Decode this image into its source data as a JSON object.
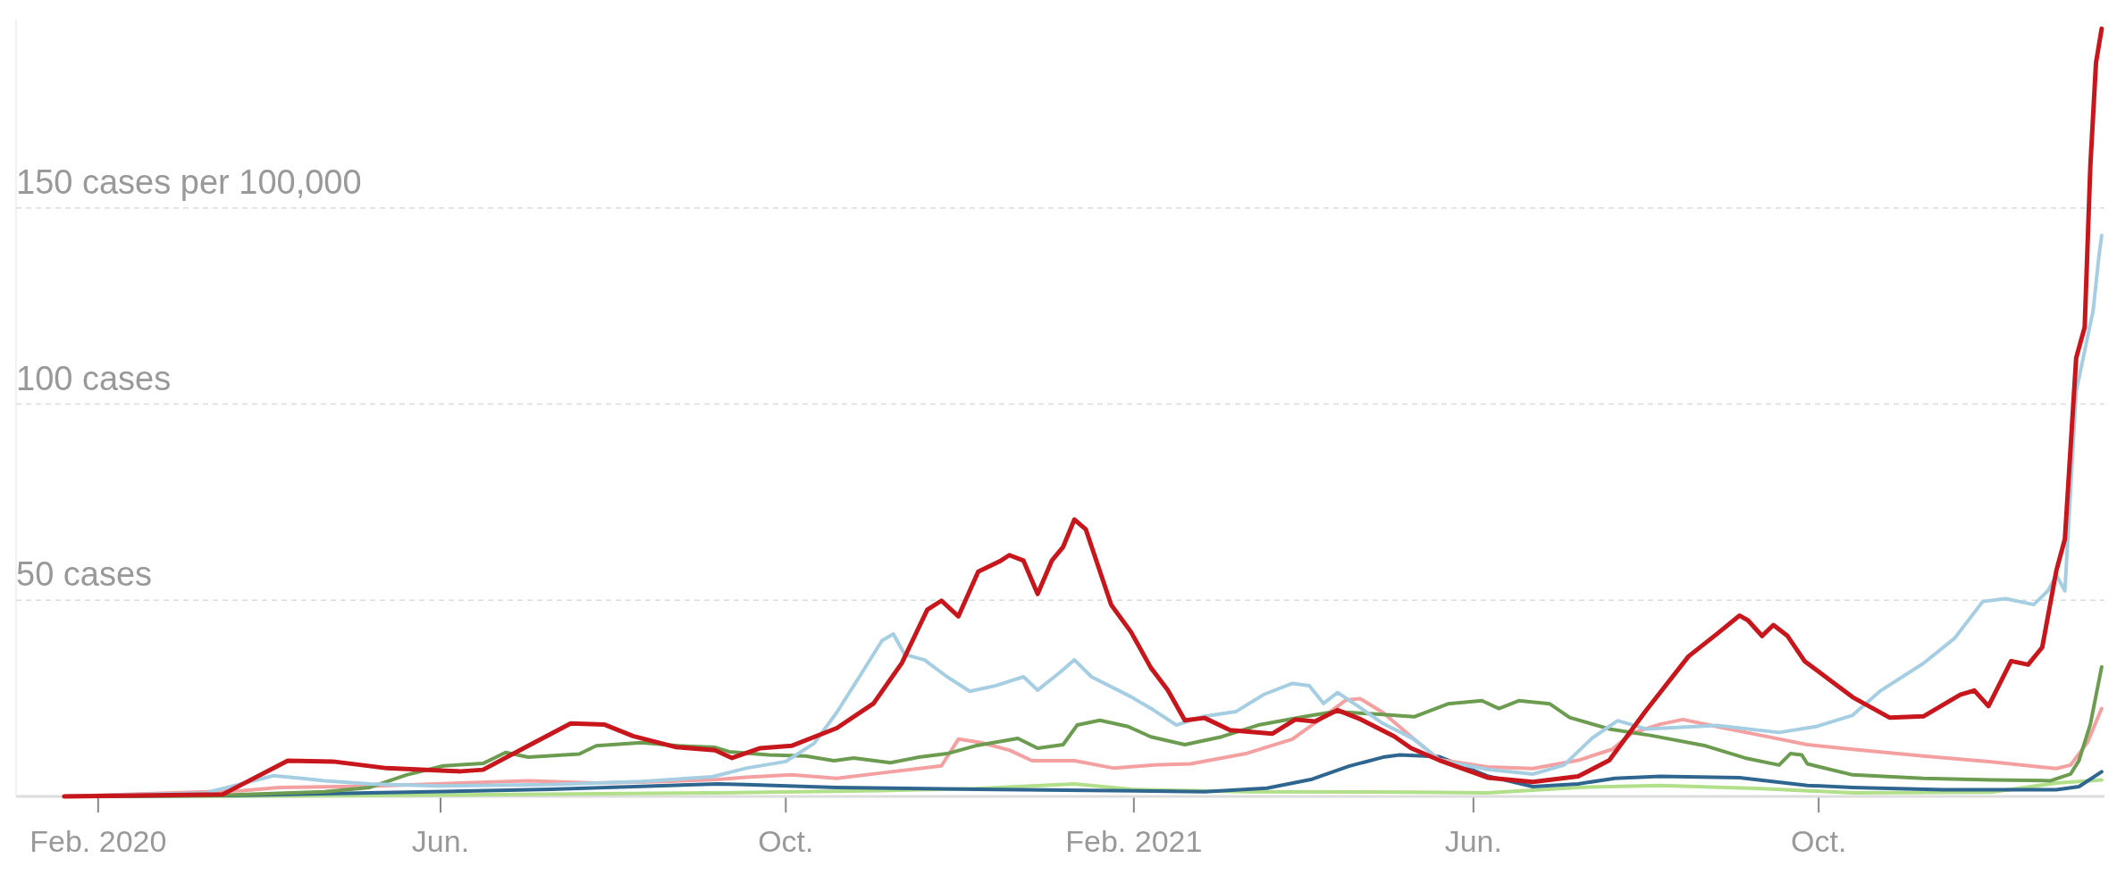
{
  "chart_data": {
    "type": "line",
    "xlim": [
      "2020-01-03",
      "2022-01-10"
    ],
    "xticks": [
      {
        "value": "2020-02-01",
        "label": "Feb. 2020"
      },
      {
        "value": "2020-06-01",
        "label": "Jun."
      },
      {
        "value": "2020-10-01",
        "label": "Oct."
      },
      {
        "value": "2021-02-01",
        "label": "Feb. 2021"
      },
      {
        "value": "2021-06-01",
        "label": "Jun."
      },
      {
        "value": "2021-10-01",
        "label": "Oct."
      }
    ],
    "ylim": [
      0,
      198
    ],
    "yticks": [
      {
        "value": 50,
        "label": "50 cases"
      },
      {
        "value": 100,
        "label": "100 cases"
      },
      {
        "value": 150,
        "label": "150 cases per 100,000"
      }
    ],
    "grid": "y",
    "series": [
      {
        "color": "#b2df8a",
        "x": [
          "2020-01-20",
          "2020-04-05",
          "2020-06-08",
          "2020-09-07",
          "2020-11-04",
          "2020-12-07",
          "2021-01-11",
          "2021-01-31",
          "2021-03-13",
          "2021-05-11",
          "2021-06-06",
          "2021-07-08",
          "2021-08-06",
          "2021-09-11",
          "2021-10-13",
          "2021-12-01",
          "2021-12-24",
          "2022-01-09"
        ],
        "values": [
          0,
          0.1,
          0.4,
          0.9,
          1.5,
          2.0,
          3.2,
          1.8,
          1.2,
          1.1,
          0.9,
          2.3,
          2.8,
          2.0,
          0.9,
          1.1,
          3.4,
          4.2
        ]
      },
      {
        "color": "#2e6690",
        "x": [
          "2020-01-20",
          "2020-03-16",
          "2020-05-07",
          "2020-07-10",
          "2020-09-07",
          "2020-09-17",
          "2020-10-19",
          "2020-12-07",
          "2021-01-24",
          "2021-02-26",
          "2021-03-20",
          "2021-04-05",
          "2021-04-18",
          "2021-04-30",
          "2021-05-06",
          "2021-05-20",
          "2021-06-06",
          "2021-06-22",
          "2021-07-08",
          "2021-07-21",
          "2021-08-06",
          "2021-09-03",
          "2021-09-27",
          "2021-10-13",
          "2021-11-14",
          "2021-12-24",
          "2022-01-01",
          "2022-01-09"
        ],
        "values": [
          0,
          0.2,
          0.9,
          1.8,
          3.2,
          3.0,
          2.3,
          1.8,
          1.5,
          1.2,
          2.1,
          4.4,
          7.7,
          10.0,
          10.6,
          10.1,
          5.2,
          2.5,
          3.2,
          4.6,
          5.1,
          4.8,
          2.8,
          2.3,
          1.7,
          1.7,
          2.5,
          6.3
        ]
      },
      {
        "color": "#f4a0a0",
        "x": [
          "2020-01-20",
          "2020-03-23",
          "2020-04-05",
          "2020-05-07",
          "2020-06-08",
          "2020-07-02",
          "2020-07-26",
          "2020-08-19",
          "2020-09-07",
          "2020-09-17",
          "2020-10-03",
          "2020-10-19",
          "2020-11-04",
          "2020-11-25",
          "2020-12-01",
          "2020-12-09",
          "2020-12-19",
          "2020-12-27",
          "2021-01-11",
          "2021-01-25",
          "2021-02-08",
          "2021-02-21",
          "2021-03-13",
          "2021-03-29",
          "2021-04-09",
          "2021-04-17",
          "2021-04-22",
          "2021-04-30",
          "2021-05-11",
          "2021-05-20",
          "2021-06-06",
          "2021-06-22",
          "2021-07-08",
          "2021-07-20",
          "2021-07-27",
          "2021-08-06",
          "2021-08-14",
          "2021-08-26",
          "2021-09-11",
          "2021-09-27",
          "2021-10-13",
          "2021-11-07",
          "2021-12-01",
          "2021-12-24",
          "2021-12-29",
          "2022-01-04",
          "2022-01-09"
        ],
        "values": [
          0,
          1.5,
          2.3,
          2.6,
          3.4,
          4.0,
          3.4,
          3.8,
          4.3,
          4.9,
          5.5,
          4.6,
          6.0,
          7.8,
          14.6,
          13.7,
          11.8,
          9.1,
          9.1,
          7.2,
          8.0,
          8.3,
          11.0,
          14.6,
          20.3,
          24.6,
          24.9,
          21.4,
          14.6,
          9.4,
          7.5,
          7.1,
          9.2,
          12.0,
          16.1,
          18.4,
          19.6,
          17.8,
          15.5,
          13.2,
          12.0,
          10.3,
          8.8,
          7.1,
          8.0,
          13.8,
          22.4
        ]
      },
      {
        "color": "#6b9c4f",
        "x": [
          "2020-01-20",
          "2020-03-16",
          "2020-04-21",
          "2020-05-07",
          "2020-05-20",
          "2020-06-02",
          "2020-06-16",
          "2020-06-24",
          "2020-07-02",
          "2020-07-20",
          "2020-07-26",
          "2020-08-11",
          "2020-08-24",
          "2020-09-06",
          "2020-09-11",
          "2020-09-25",
          "2020-10-08",
          "2020-10-18",
          "2020-10-25",
          "2020-11-07",
          "2020-11-17",
          "2020-11-27",
          "2020-12-07",
          "2020-12-22",
          "2020-12-29",
          "2021-01-07",
          "2021-01-12",
          "2021-01-20",
          "2021-01-30",
          "2021-02-07",
          "2021-02-19",
          "2021-03-04",
          "2021-03-17",
          "2021-04-02",
          "2021-04-13",
          "2021-04-30",
          "2021-05-11",
          "2021-05-23",
          "2021-06-04",
          "2021-06-10",
          "2021-06-17",
          "2021-06-28",
          "2021-07-05",
          "2021-07-19",
          "2021-08-03",
          "2021-08-22",
          "2021-09-05",
          "2021-09-17",
          "2021-09-21",
          "2021-09-25",
          "2021-09-27",
          "2021-10-13",
          "2021-11-07",
          "2021-12-01",
          "2021-12-22",
          "2021-12-29",
          "2022-01-01",
          "2022-01-05",
          "2022-01-09"
        ],
        "values": [
          0,
          0.3,
          1.2,
          2.3,
          5.5,
          7.8,
          8.4,
          11.2,
          10.0,
          10.8,
          12.9,
          13.7,
          12.9,
          12.5,
          11.4,
          10.6,
          10.3,
          9.1,
          9.8,
          8.6,
          10.0,
          10.9,
          12.9,
          14.8,
          12.3,
          13.2,
          18.2,
          19.4,
          17.8,
          15.2,
          13.2,
          15.2,
          18.2,
          20.3,
          21.6,
          20.9,
          20.3,
          23.6,
          24.4,
          22.4,
          24.4,
          23.6,
          20.1,
          17.2,
          15.5,
          12.9,
          9.8,
          8.0,
          10.9,
          10.6,
          8.3,
          5.5,
          4.6,
          4.2,
          4.0,
          5.7,
          9.2,
          18.4,
          33
        ]
      },
      {
        "color": "#a6cee3",
        "x": [
          "2020-01-20",
          "2020-03-10",
          "2020-04-03",
          "2020-04-13",
          "2020-04-21",
          "2020-05-07",
          "2020-05-31",
          "2020-07-10",
          "2020-08-11",
          "2020-09-05",
          "2020-09-17",
          "2020-10-01",
          "2020-10-11",
          "2020-10-19",
          "2020-10-27",
          "2020-11-04",
          "2020-11-08",
          "2020-11-12",
          "2020-11-19",
          "2020-11-27",
          "2020-12-05",
          "2020-12-14",
          "2020-12-24",
          "2020-12-29",
          "2021-01-06",
          "2021-01-11",
          "2021-01-17",
          "2021-01-31",
          "2021-02-08",
          "2021-02-16",
          "2021-02-25",
          "2021-03-09",
          "2021-03-19",
          "2021-03-29",
          "2021-04-04",
          "2021-04-09",
          "2021-04-14",
          "2021-04-22",
          "2021-04-30",
          "2021-05-11",
          "2021-05-20",
          "2021-06-06",
          "2021-06-22",
          "2021-07-03",
          "2021-07-13",
          "2021-07-22",
          "2021-08-01",
          "2021-08-26",
          "2021-09-17",
          "2021-09-30",
          "2021-10-13",
          "2021-10-23",
          "2021-11-07",
          "2021-11-18",
          "2021-11-28",
          "2021-12-06",
          "2021-12-16",
          "2021-12-21",
          "2021-12-24",
          "2021-12-27",
          "2021-12-31",
          "2022-01-03",
          "2022-01-06",
          "2022-01-08",
          "2022-01-09"
        ],
        "values": [
          0,
          0.9,
          5.3,
          4.6,
          4.0,
          3.2,
          2.7,
          3.0,
          3.8,
          5.0,
          7.2,
          8.9,
          13.5,
          21.4,
          30.5,
          39.7,
          41.4,
          36.2,
          34.8,
          30.5,
          26.8,
          28.2,
          30.5,
          27.1,
          31.7,
          34.8,
          30.5,
          25.4,
          22.0,
          18.2,
          20.3,
          21.6,
          26.0,
          28.8,
          28.2,
          23.7,
          26.5,
          22.6,
          18.6,
          14.6,
          9.2,
          6.9,
          5.7,
          8.0,
          14.9,
          19.3,
          17.2,
          18.1,
          16.3,
          17.8,
          20.7,
          27.0,
          33.9,
          40.3,
          49.7,
          50.4,
          48.9,
          52.4,
          56.4,
          52.4,
          103.3,
          113.6,
          123.9,
          137.5,
          143
        ]
      },
      {
        "color": "#c8161d",
        "x": [
          "2020-01-20",
          "2020-03-16",
          "2020-04-08",
          "2020-04-24",
          "2020-05-13",
          "2020-06-08",
          "2020-06-16",
          "2020-07-02",
          "2020-07-17",
          "2020-07-29",
          "2020-08-08",
          "2020-08-23",
          "2020-09-06",
          "2020-09-12",
          "2020-09-22",
          "2020-10-03",
          "2020-10-19",
          "2020-11-01",
          "2020-11-11",
          "2020-11-20",
          "2020-11-25",
          "2020-12-01",
          "2020-12-08",
          "2020-12-16",
          "2020-12-19",
          "2020-12-24",
          "2020-12-29",
          "2021-01-03",
          "2021-01-07",
          "2021-01-11",
          "2021-01-15",
          "2021-01-24",
          "2021-01-31",
          "2021-02-07",
          "2021-02-13",
          "2021-02-19",
          "2021-02-26",
          "2021-03-07",
          "2021-03-22",
          "2021-03-30",
          "2021-04-06",
          "2021-04-14",
          "2021-04-22",
          "2021-05-04",
          "2021-05-10",
          "2021-05-20",
          "2021-06-06",
          "2021-06-22",
          "2021-07-08",
          "2021-07-19",
          "2021-08-01",
          "2021-08-16",
          "2021-08-26",
          "2021-09-03",
          "2021-09-06",
          "2021-09-11",
          "2021-09-15",
          "2021-09-20",
          "2021-09-26",
          "2021-10-13",
          "2021-10-26",
          "2021-11-07",
          "2021-11-20",
          "2021-11-25",
          "2021-11-30",
          "2021-12-08",
          "2021-12-14",
          "2021-12-19",
          "2021-12-24",
          "2021-12-27",
          "2021-12-31",
          "2022-01-03",
          "2022-01-05",
          "2022-01-07",
          "2022-01-09"
        ],
        "values": [
          0,
          0.5,
          9.1,
          8.9,
          7.2,
          6.4,
          6.8,
          12.9,
          18.6,
          18.3,
          15.4,
          12.6,
          11.8,
          9.8,
          12.3,
          12.9,
          17.4,
          23.7,
          34,
          47.6,
          49.9,
          45.9,
          57.3,
          60.1,
          61.5,
          60.1,
          51.6,
          60.1,
          63.6,
          70.6,
          68.1,
          48.8,
          41.9,
          32.8,
          27.1,
          19.4,
          20.0,
          16.9,
          16.0,
          19.6,
          19.1,
          22,
          19.7,
          15.3,
          12.3,
          9.2,
          4.8,
          3.7,
          5.1,
          9.2,
          21.9,
          35.7,
          41.4,
          46.1,
          44.9,
          40.9,
          43.7,
          40.9,
          34.5,
          25.3,
          20.1,
          20.4,
          25.9,
          27.0,
          23.0,
          34.5,
          33.6,
          38,
          57.6,
          65.6,
          111.8,
          119.6,
          160.7,
          187,
          195.7
        ]
      }
    ]
  }
}
